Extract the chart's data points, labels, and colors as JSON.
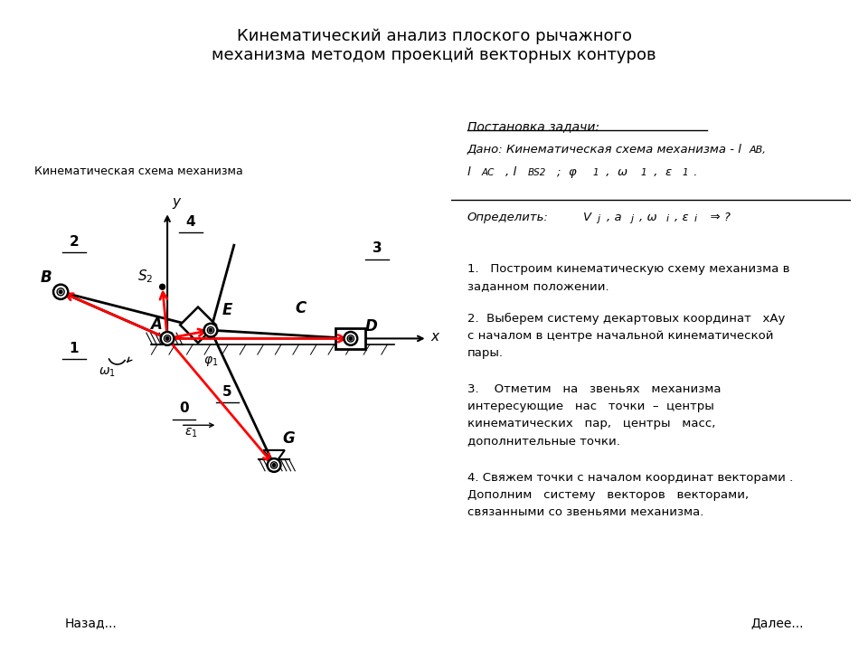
{
  "title": "Кинематический анализ плоского рычажного\nмеханизма методом проекций векторных контуров",
  "title_bg": "#c0c0c0",
  "bg_color": "#ffffff",
  "btn_back": "Назад...",
  "btn_next": "Далее...",
  "btn_color": "#add8e6",
  "schema_title": "Кинематическая схема механизма"
}
